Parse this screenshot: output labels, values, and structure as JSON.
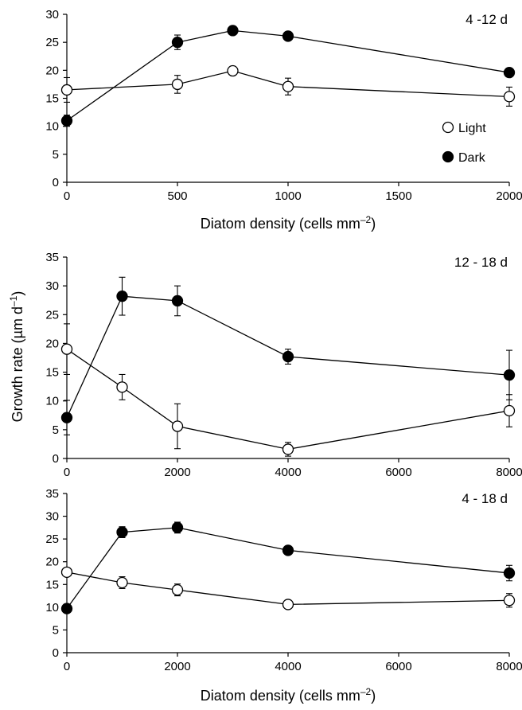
{
  "shared": {
    "ylabel": "Growth rate (µm d",
    "ylabel_sup": "–1",
    "ylabel_close": ")",
    "xlabel": "Diatom density (cells mm",
    "xlabel_sup": "–2",
    "xlabel_close": ")"
  },
  "legend": {
    "light": "Light",
    "dark": "Dark",
    "light_color": "#ffffff",
    "dark_color": "#000000"
  },
  "chart_data": [
    {
      "type": "line",
      "panel_label": "4 -12  d",
      "xlabel": "Diatom density (cells mm–2)",
      "xlim": [
        0,
        2000
      ],
      "ylim": [
        0,
        30
      ],
      "xticks": [
        0,
        500,
        1000,
        1500,
        2000
      ],
      "yticks": [
        0,
        5,
        10,
        15,
        20,
        25,
        30
      ],
      "series": [
        {
          "name": "Light",
          "fill": "#ffffff",
          "x": [
            0,
            500,
            750,
            1000,
            2000
          ],
          "y": [
            16.5,
            17.5,
            19.9,
            17.1,
            15.3
          ],
          "err": [
            2.2,
            1.6,
            0.7,
            1.5,
            1.7
          ]
        },
        {
          "name": "Dark",
          "fill": "#000000",
          "x": [
            0,
            500,
            750,
            1000,
            2000
          ],
          "y": [
            11.0,
            25.0,
            27.1,
            26.1,
            19.6
          ],
          "err": [
            1.0,
            1.3,
            0,
            0,
            0
          ]
        }
      ]
    },
    {
      "type": "line",
      "panel_label": "12 - 18 d",
      "xlim": [
        0,
        8000
      ],
      "ylim": [
        0,
        35
      ],
      "xticks": [
        0,
        2000,
        4000,
        6000,
        8000
      ],
      "yticks": [
        0,
        5,
        10,
        15,
        20,
        25,
        30,
        35
      ],
      "series": [
        {
          "name": "Light",
          "fill": "#ffffff",
          "x": [
            0,
            1000,
            2000,
            4000,
            8000
          ],
          "y": [
            19.0,
            12.4,
            5.6,
            1.6,
            8.3
          ],
          "err": [
            4.4,
            2.2,
            3.9,
            1.2,
            2.8
          ]
        },
        {
          "name": "Dark",
          "fill": "#000000",
          "x": [
            0,
            1000,
            2000,
            4000,
            8000
          ],
          "y": [
            7.1,
            28.2,
            27.4,
            17.7,
            14.5
          ],
          "err": [
            3.0,
            3.3,
            2.6,
            1.3,
            4.3
          ]
        }
      ]
    },
    {
      "type": "line",
      "panel_label": "4 - 18 d",
      "xlabel": "Diatom density (cells mm–2)",
      "xlim": [
        0,
        8000
      ],
      "ylim": [
        0,
        35
      ],
      "xticks": [
        0,
        2000,
        4000,
        6000,
        8000
      ],
      "yticks": [
        0,
        5,
        10,
        15,
        20,
        25,
        30,
        35
      ],
      "series": [
        {
          "name": "Light",
          "fill": "#ffffff",
          "x": [
            0,
            1000,
            2000,
            4000,
            8000
          ],
          "y": [
            17.7,
            15.4,
            13.8,
            10.6,
            11.5
          ],
          "err": [
            0.8,
            1.3,
            1.3,
            0,
            1.5
          ]
        },
        {
          "name": "Dark",
          "fill": "#000000",
          "x": [
            0,
            1000,
            2000,
            4000,
            8000
          ],
          "y": [
            9.7,
            26.5,
            27.5,
            22.5,
            17.5
          ],
          "err": [
            0,
            1.2,
            1.2,
            0,
            1.7
          ]
        }
      ]
    }
  ]
}
